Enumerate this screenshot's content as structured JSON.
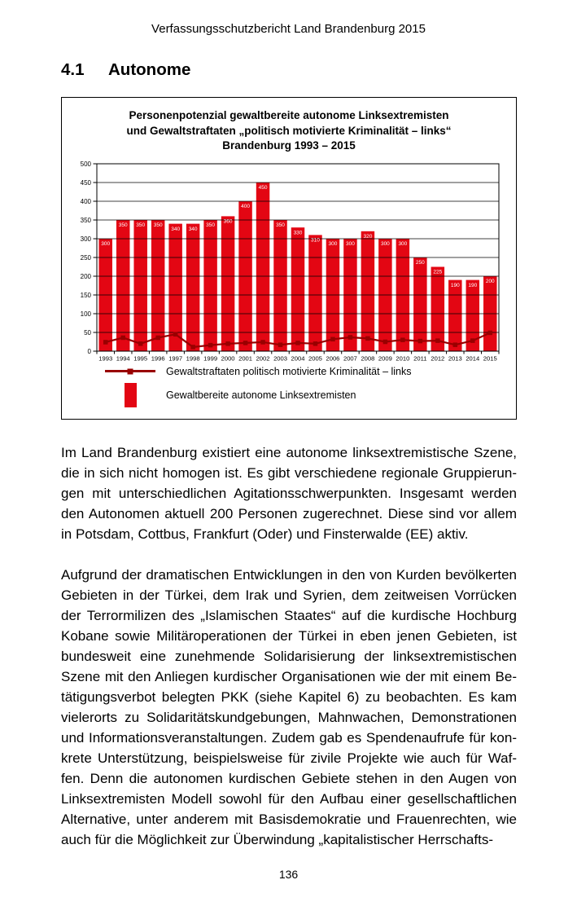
{
  "page": {
    "header": "Verfassungsschutzbericht Land Brandenburg 2015",
    "section_number": "4.1",
    "section_title": "Autonome",
    "page_number": "136"
  },
  "chart": {
    "title_line1": "Personenpotenzial gewaltbereite autonome Linksextremisten",
    "title_line2": "und Gewaltstraftaten „politisch motivierte Kriminalität – links“",
    "title_line3": "Brandenburg 1993 – 2015",
    "legend": [
      {
        "label": "Gewaltstraftaten politisch motivierte Kriminalität – links",
        "type": "line"
      },
      {
        "label": "Gewaltbereite autonome Linksextremisten",
        "type": "bar"
      }
    ],
    "colors": {
      "bar": "#e30613",
      "line": "#990000",
      "grid": "#000000",
      "bar_label": "#ffffff"
    }
  },
  "chart_data": {
    "type": "bar",
    "categories": [
      "1993",
      "1994",
      "1995",
      "1996",
      "1997",
      "1998",
      "1999",
      "2000",
      "2001",
      "2002",
      "2003",
      "2004",
      "2005",
      "2006",
      "2007",
      "2008",
      "2009",
      "2010",
      "2011",
      "2012",
      "2013",
      "2014",
      "2015"
    ],
    "series": [
      {
        "name": "Gewaltbereite autonome Linksextremisten",
        "type": "bar",
        "values": [
          300,
          350,
          350,
          350,
          340,
          340,
          350,
          360,
          400,
          450,
          350,
          330,
          310,
          300,
          300,
          320,
          300,
          300,
          250,
          225,
          190,
          190,
          200
        ]
      },
      {
        "name": "Gewaltstraftaten politisch motivierte Kriminalität – links",
        "type": "line",
        "values": [
          24,
          36,
          20,
          36,
          45,
          11,
          16,
          20,
          22,
          24,
          17,
          22,
          20,
          32,
          37,
          34,
          25,
          30,
          27,
          28,
          17,
          28,
          49
        ]
      }
    ],
    "title": "Personenpotenzial gewaltbereite autonome Linksextremisten und Gewaltstraftaten „politisch motivierte Kriminalität – links“ Brandenburg 1993 – 2015",
    "xlabel": "",
    "ylabel": "",
    "ylim": [
      0,
      500
    ],
    "ytick_step": 50,
    "grid": true,
    "gridlines_over_bars": true,
    "bar_labels_shown": true,
    "legend_position": "bottom"
  },
  "paragraphs": {
    "p1": "Im Land Brandenburg existiert eine autonome linksextremistische Szene, die in sich nicht homogen ist. Es gibt verschiedene regionale Gruppierun­gen mit unterschiedlichen Agitationsschwerpunkten. Insgesamt werden den Autonomen aktuell 200 Personen zugerechnet. Diese sind vor allem in Potsdam, Cottbus, Frankfurt (Oder) und Finsterwalde (EE) aktiv.",
    "p2": "Aufgrund der dramatischen Entwicklungen in den von Kurden bevölkerten Gebieten in der Türkei, dem Irak und Syrien, dem zeitweisen Vorrücken der Terrormilizen des „Islamischen Staates“ auf die kurdische Hochburg Kobane sowie Militäroperationen der Türkei in eben jenen Gebieten, ist bundesweit eine zunehmende Solidarisierung der linksextremistischen Szene mit den Anliegen kurdischer Organisationen wie der mit einem Be­tätigungsverbot belegten PKK (siehe Kapitel 6) zu beobachten. Es kam vielerorts zu Solidaritätskundgebungen, Mahnwachen, Demonstrationen und Informationsveranstaltungen. Zudem gab es Spendenaufrufe für kon­krete Unterstützung, beispielsweise für zivile Projekte wie auch für Waf­fen. Denn die autonomen kurdischen Gebiete stehen in den Augen von Linksextremisten Modell sowohl für den Aufbau einer gesellschaftlichen Alternative, unter anderem mit Basisdemokratie und Frauenrechten, wie auch für die Möglichkeit zur Überwindung „kapitalistischer Herrschafts-"
  }
}
